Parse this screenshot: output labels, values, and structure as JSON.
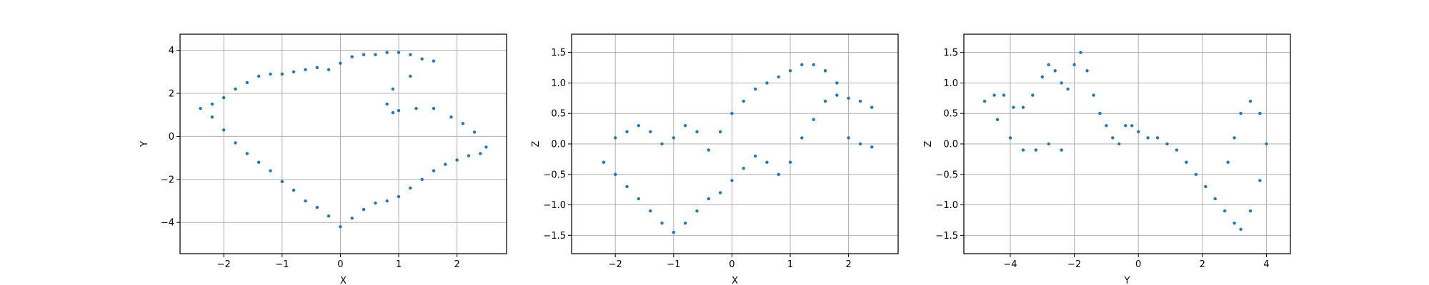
{
  "chart_data": [
    {
      "type": "scatter",
      "xlabel": "X",
      "ylabel": "Y",
      "xlim": [
        -2.75,
        2.85
      ],
      "ylim": [
        -5.45,
        4.75
      ],
      "xticks": [
        -2,
        -1,
        0,
        1,
        2
      ],
      "yticks": [
        -4,
        -2,
        0,
        2,
        4
      ],
      "xtick_labels": [
        "−2",
        "−1",
        "0",
        "1",
        "2"
      ],
      "ytick_labels": [
        "−4",
        "−2",
        "0",
        "2",
        "4"
      ],
      "grid": true,
      "series": [
        {
          "color": "#1f77b4",
          "x": [
            -2.4,
            -2.2,
            -2.0,
            -1.8,
            -1.6,
            -1.4,
            -1.2,
            -1.0,
            -0.8,
            -0.6,
            -0.4,
            -0.2,
            0.0,
            0.2,
            0.4,
            0.6,
            0.8,
            1.0,
            1.2,
            1.4,
            1.6,
            1.2,
            0.9,
            0.8,
            0.9,
            1.0,
            1.3,
            1.6,
            1.9,
            2.1,
            2.3,
            2.5,
            2.4,
            2.2,
            2.0,
            1.8,
            1.6,
            1.4,
            1.2,
            1.0,
            0.8,
            0.6,
            0.4,
            0.2,
            0.0,
            -0.2,
            -0.4,
            -0.6,
            -0.8,
            -1.0,
            -1.2,
            -1.4,
            -1.6,
            -1.8,
            -2.0,
            -2.2
          ],
          "y": [
            1.3,
            1.5,
            1.8,
            2.2,
            2.5,
            2.8,
            2.9,
            2.9,
            3.0,
            3.1,
            3.2,
            3.1,
            3.4,
            3.7,
            3.8,
            3.8,
            3.9,
            3.9,
            3.8,
            3.6,
            3.5,
            2.8,
            2.2,
            1.5,
            1.1,
            1.2,
            1.3,
            1.3,
            0.9,
            0.6,
            0.2,
            -0.5,
            -0.8,
            -0.9,
            -1.1,
            -1.3,
            -1.6,
            -2.0,
            -2.4,
            -2.8,
            -3.0,
            -3.1,
            -3.4,
            -3.8,
            -4.2,
            -3.7,
            -3.3,
            -3.0,
            -2.5,
            -2.1,
            -1.6,
            -1.2,
            -0.8,
            -0.3,
            0.3,
            0.9
          ]
        }
      ]
    },
    {
      "type": "scatter",
      "xlabel": "X",
      "ylabel": "Z",
      "xlim": [
        -2.75,
        2.85
      ],
      "ylim": [
        -1.8,
        1.8
      ],
      "xticks": [
        -2,
        -1,
        0,
        1,
        2
      ],
      "yticks": [
        -1.5,
        -1.0,
        -0.5,
        0.0,
        0.5,
        1.0,
        1.5
      ],
      "xtick_labels": [
        "−2",
        "−1",
        "0",
        "1",
        "2"
      ],
      "ytick_labels": [
        "−1.5",
        "−1.0",
        "−0.5",
        "0.0",
        "0.5",
        "1.0",
        "1.5"
      ],
      "grid": true,
      "series": [
        {
          "color": "#1f77b4",
          "x": [
            -2.2,
            -2.0,
            -1.8,
            -1.6,
            -1.4,
            -1.2,
            -1.0,
            -0.8,
            -0.6,
            -0.4,
            -0.2,
            0.0,
            0.2,
            0.4,
            0.6,
            0.8,
            1.0,
            1.2,
            1.4,
            1.6,
            1.8,
            2.0,
            2.2,
            2.4,
            -2.0,
            -1.8,
            -1.6,
            -1.4,
            -1.2,
            -1.0,
            -0.8,
            -0.6,
            -0.4,
            -0.2,
            0.0,
            0.2,
            0.4,
            0.6,
            0.8,
            1.0,
            1.2,
            1.4,
            1.6,
            1.8,
            2.0,
            2.2,
            2.4
          ],
          "y": [
            -0.3,
            -0.5,
            -0.7,
            -0.9,
            -1.1,
            -1.3,
            -1.45,
            -1.3,
            -1.1,
            -0.9,
            -0.8,
            -0.6,
            -0.4,
            -0.2,
            -0.3,
            -0.5,
            -0.3,
            0.1,
            0.4,
            0.7,
            0.8,
            0.75,
            0.7,
            0.6,
            0.1,
            0.2,
            0.3,
            0.2,
            0.0,
            0.1,
            0.3,
            0.2,
            -0.1,
            0.2,
            0.5,
            0.7,
            0.9,
            1.0,
            1.1,
            1.2,
            1.3,
            1.3,
            1.2,
            1.0,
            0.1,
            0.0,
            -0.05
          ]
        }
      ]
    },
    {
      "type": "scatter",
      "xlabel": "Y",
      "ylabel": "Z",
      "xlim": [
        -5.45,
        4.75
      ],
      "ylim": [
        -1.8,
        1.8
      ],
      "xticks": [
        -4,
        -2,
        0,
        2,
        4
      ],
      "yticks": [
        -1.5,
        -1.0,
        -0.5,
        0.0,
        0.5,
        1.0,
        1.5
      ],
      "xtick_labels": [
        "−4",
        "−2",
        "0",
        "2",
        "4"
      ],
      "ytick_labels": [
        "−1.5",
        "−1.0",
        "−0.5",
        "0.0",
        "0.5",
        "1.0",
        "1.5"
      ],
      "grid": true,
      "series": [
        {
          "color": "#1f77b4",
          "x": [
            -4.8,
            -4.5,
            -4.2,
            -3.9,
            -3.6,
            -3.3,
            -3.0,
            -2.8,
            -2.6,
            -2.4,
            -2.2,
            -2.0,
            -1.8,
            -1.6,
            -1.4,
            -1.2,
            -1.0,
            -0.8,
            -0.6,
            -0.4,
            -0.2,
            0.0,
            0.3,
            0.6,
            0.9,
            1.2,
            1.5,
            1.8,
            2.1,
            2.4,
            2.7,
            3.0,
            3.2,
            3.5,
            3.8,
            4.0,
            3.8,
            3.5,
            3.2,
            3.0,
            2.8,
            -4.4,
            -4.0,
            -3.6,
            -3.2,
            -2.8,
            -2.4
          ],
          "y": [
            0.7,
            0.8,
            0.8,
            0.6,
            0.6,
            0.8,
            1.1,
            1.3,
            1.2,
            1.0,
            0.9,
            1.3,
            1.5,
            1.2,
            0.8,
            0.5,
            0.3,
            0.1,
            0.0,
            0.3,
            0.3,
            0.2,
            0.1,
            0.1,
            0.0,
            -0.1,
            -0.3,
            -0.5,
            -0.7,
            -0.9,
            -1.1,
            -1.3,
            -1.4,
            -1.1,
            -0.6,
            0.0,
            0.5,
            0.7,
            0.5,
            0.1,
            -0.3,
            0.4,
            0.1,
            -0.1,
            -0.1,
            0.0,
            -0.1
          ]
        }
      ]
    }
  ]
}
